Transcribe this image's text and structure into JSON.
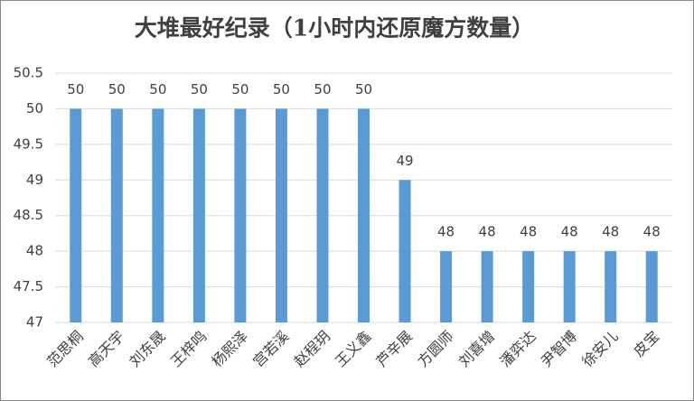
{
  "chart_data": {
    "type": "bar",
    "title": "大堆最好纪录（1小时内还原魔方数量）",
    "categories": [
      "范思桐",
      "高天宇",
      "刘东晟",
      "王梓鸣",
      "杨熙泽",
      "宫若溪",
      "赵程玥",
      "王义鑫",
      "芦辛展",
      "方圆师",
      "刘喜增",
      "潘弈达",
      "尹智博",
      "徐安儿",
      "皮宝"
    ],
    "values": [
      50,
      50,
      50,
      50,
      50,
      50,
      50,
      50,
      49,
      48,
      48,
      48,
      48,
      48,
      48
    ],
    "color": "#5b9bd5",
    "ylim": [
      47,
      50.5
    ],
    "yticks": [
      47,
      47.5,
      48,
      48.5,
      49,
      49.5,
      50,
      50.5
    ],
    "grid": true
  }
}
